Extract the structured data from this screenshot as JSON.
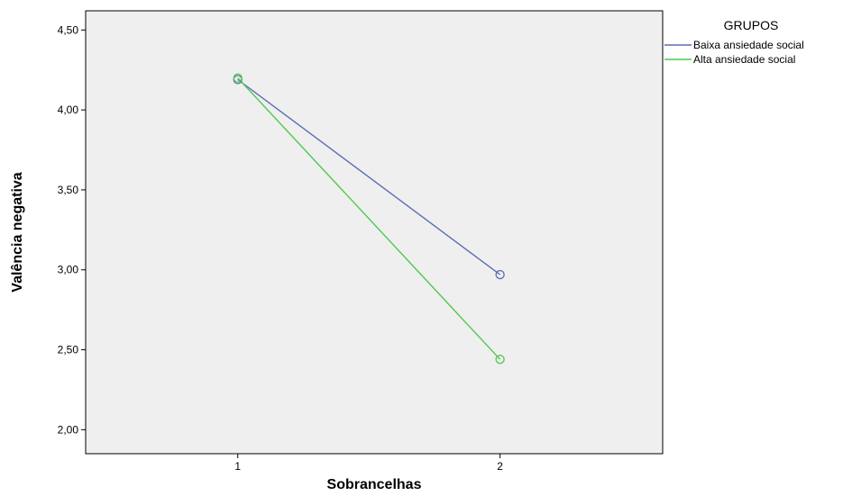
{
  "chart_data": {
    "type": "line",
    "xlabel": "Sobrancelhas",
    "ylabel": "Valência negativa",
    "categories": [
      "1",
      "2"
    ],
    "ylim": [
      1.85,
      4.62
    ],
    "yticks": [
      2.0,
      2.5,
      3.0,
      3.5,
      4.0,
      4.5
    ],
    "ytick_labels": [
      "2,00",
      "2,50",
      "3,00",
      "3,50",
      "4,00",
      "4,50"
    ],
    "xlim": [
      0.42,
      2.62
    ],
    "grid": false,
    "plot_background": "#efefef",
    "legend": {
      "title": "GRUPOS",
      "placement": "right"
    },
    "series": [
      {
        "name": "Baixa ansiedade social",
        "color": "#5b6db5",
        "values": [
          4.19,
          2.97
        ]
      },
      {
        "name": "Alta ansiedade social",
        "color": "#4fc94f",
        "values": [
          4.2,
          2.44
        ]
      }
    ]
  }
}
